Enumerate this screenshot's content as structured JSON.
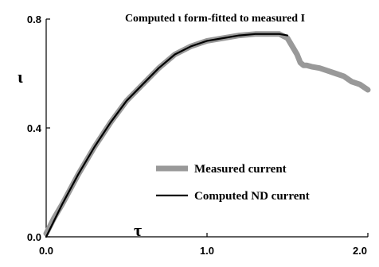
{
  "chart_data": {
    "type": "line",
    "title": "Computed ι form-fitted to measured I",
    "xlabel": "τ",
    "ylabel": "ι",
    "xlim": [
      0,
      2.0
    ],
    "ylim": [
      0,
      0.8
    ],
    "xticks": [
      {
        "value": 0.0,
        "label": "0.0"
      },
      {
        "value": 1.0,
        "label": "1.0"
      },
      {
        "value": 2.0,
        "label": "2.0"
      }
    ],
    "yticks": [
      {
        "value": 0.0,
        "label": "0.0"
      },
      {
        "value": 0.4,
        "label": "0.4"
      },
      {
        "value": 0.8,
        "label": "0.8"
      }
    ],
    "grid": false,
    "legend_position": "lower-right",
    "series": [
      {
        "name": "Measured current",
        "color": "#999999",
        "style": "thick",
        "x": [
          0.0,
          0.05,
          0.1,
          0.2,
          0.3,
          0.4,
          0.5,
          0.6,
          0.7,
          0.8,
          0.9,
          1.0,
          1.1,
          1.2,
          1.3,
          1.4,
          1.45,
          1.5,
          1.53,
          1.56,
          1.58,
          1.6,
          1.62,
          1.65,
          1.7,
          1.75,
          1.8,
          1.85,
          1.9,
          1.95,
          2.0
        ],
        "y": [
          0.012,
          0.07,
          0.12,
          0.23,
          0.33,
          0.42,
          0.5,
          0.56,
          0.62,
          0.67,
          0.7,
          0.72,
          0.73,
          0.74,
          0.745,
          0.745,
          0.745,
          0.73,
          0.7,
          0.67,
          0.64,
          0.63,
          0.63,
          0.625,
          0.62,
          0.61,
          0.6,
          0.59,
          0.57,
          0.56,
          0.54
        ]
      },
      {
        "name": "Computed ND current",
        "color": "#000000",
        "style": "thin",
        "x": [
          0.0,
          0.05,
          0.1,
          0.2,
          0.3,
          0.4,
          0.5,
          0.6,
          0.7,
          0.8,
          0.9,
          1.0,
          1.1,
          1.2,
          1.3,
          1.4,
          1.45,
          1.5
        ],
        "y": [
          0.0,
          0.06,
          0.12,
          0.23,
          0.33,
          0.42,
          0.5,
          0.56,
          0.62,
          0.67,
          0.7,
          0.72,
          0.73,
          0.74,
          0.745,
          0.745,
          0.745,
          0.74
        ]
      }
    ]
  }
}
